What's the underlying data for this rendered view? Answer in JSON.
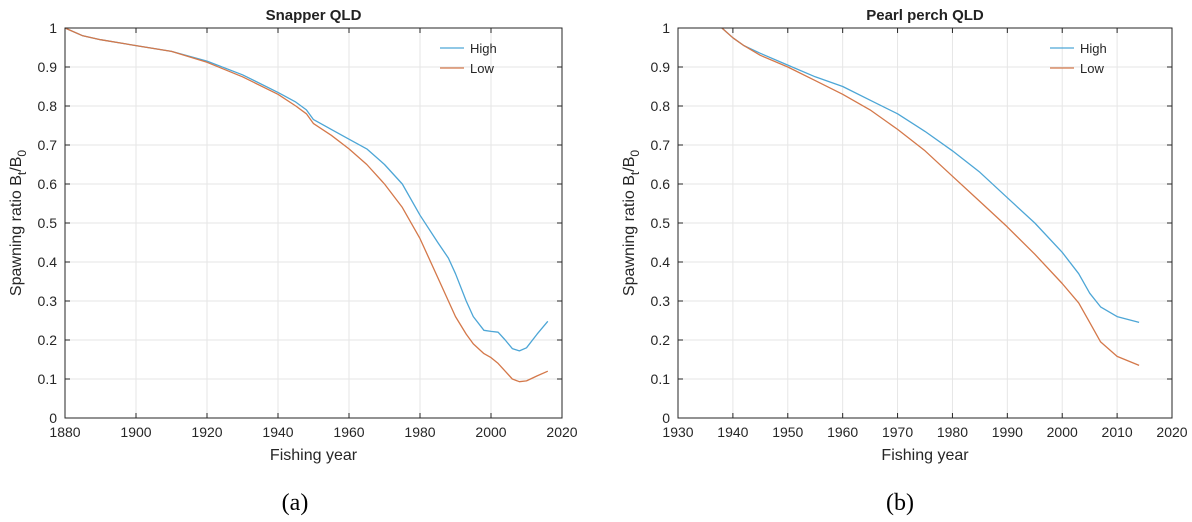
{
  "chart_data": [
    {
      "type": "line",
      "title": "Snapper QLD",
      "xlabel": "Fishing year",
      "ylabel_main": "Spawning ratio B",
      "ylabel_sub1": "t",
      "ylabel_mid": "/B",
      "ylabel_sub2": "0",
      "xlim": [
        1880,
        2020
      ],
      "ylim": [
        0,
        1
      ],
      "xticks": [
        1880,
        1900,
        1920,
        1940,
        1960,
        1980,
        2000,
        2020
      ],
      "yticks": [
        "0",
        "0.1",
        "0.2",
        "0.3",
        "0.4",
        "0.5",
        "0.6",
        "0.7",
        "0.8",
        "0.9",
        "1"
      ],
      "grid": true,
      "legend": "top-right",
      "caption": "(a)",
      "series": [
        {
          "name": "High",
          "color": "#4da6d6",
          "x": [
            1880,
            1885,
            1890,
            1900,
            1910,
            1920,
            1930,
            1940,
            1945,
            1948,
            1950,
            1955,
            1960,
            1965,
            1970,
            1975,
            1980,
            1985,
            1988,
            1990,
            1993,
            1995,
            1998,
            2000,
            2002,
            2004,
            2006,
            2008,
            2010,
            2013,
            2016
          ],
          "y": [
            1.0,
            0.98,
            0.97,
            0.955,
            0.94,
            0.915,
            0.88,
            0.835,
            0.81,
            0.79,
            0.765,
            0.74,
            0.715,
            0.69,
            0.65,
            0.6,
            0.52,
            0.45,
            0.41,
            0.37,
            0.3,
            0.26,
            0.225,
            0.222,
            0.22,
            0.2,
            0.178,
            0.172,
            0.18,
            0.215,
            0.248
          ]
        },
        {
          "name": "Low",
          "color": "#d4784a",
          "x": [
            1880,
            1885,
            1890,
            1900,
            1910,
            1920,
            1930,
            1940,
            1945,
            1948,
            1950,
            1955,
            1960,
            1965,
            1970,
            1975,
            1980,
            1985,
            1990,
            1993,
            1995,
            1998,
            2000,
            2002,
            2004,
            2006,
            2008,
            2010,
            2013,
            2016
          ],
          "y": [
            1.0,
            0.98,
            0.97,
            0.955,
            0.94,
            0.912,
            0.875,
            0.83,
            0.8,
            0.78,
            0.755,
            0.725,
            0.69,
            0.65,
            0.6,
            0.54,
            0.46,
            0.36,
            0.26,
            0.215,
            0.19,
            0.165,
            0.155,
            0.14,
            0.12,
            0.1,
            0.093,
            0.095,
            0.108,
            0.12
          ]
        }
      ]
    },
    {
      "type": "line",
      "title": "Pearl perch QLD",
      "xlabel": "Fishing year",
      "ylabel_main": "Spawning ratio B",
      "ylabel_sub1": "t",
      "ylabel_mid": "/B",
      "ylabel_sub2": "0",
      "xlim": [
        1930,
        2020
      ],
      "ylim": [
        0,
        1
      ],
      "xticks": [
        1930,
        1940,
        1950,
        1960,
        1970,
        1980,
        1990,
        2000,
        2010,
        2020
      ],
      "yticks": [
        "0",
        "0.1",
        "0.2",
        "0.3",
        "0.4",
        "0.5",
        "0.6",
        "0.7",
        "0.8",
        "0.9",
        "1"
      ],
      "grid": true,
      "legend": "top-right",
      "caption": "(b)",
      "series": [
        {
          "name": "High",
          "color": "#4da6d6",
          "x": [
            1938,
            1940,
            1942,
            1945,
            1950,
            1955,
            1960,
            1965,
            1970,
            1975,
            1980,
            1985,
            1990,
            1995,
            2000,
            2003,
            2005,
            2007,
            2010,
            2014
          ],
          "y": [
            1.0,
            0.975,
            0.955,
            0.935,
            0.905,
            0.875,
            0.85,
            0.815,
            0.78,
            0.735,
            0.685,
            0.63,
            0.565,
            0.5,
            0.425,
            0.37,
            0.32,
            0.285,
            0.26,
            0.245
          ]
        },
        {
          "name": "Low",
          "color": "#d4784a",
          "x": [
            1938,
            1940,
            1942,
            1945,
            1950,
            1955,
            1960,
            1965,
            1970,
            1975,
            1980,
            1985,
            1990,
            1995,
            2000,
            2003,
            2005,
            2007,
            2010,
            2014
          ],
          "y": [
            1.0,
            0.975,
            0.955,
            0.93,
            0.9,
            0.865,
            0.83,
            0.79,
            0.74,
            0.685,
            0.62,
            0.555,
            0.49,
            0.42,
            0.345,
            0.295,
            0.245,
            0.195,
            0.158,
            0.135
          ]
        }
      ]
    }
  ]
}
